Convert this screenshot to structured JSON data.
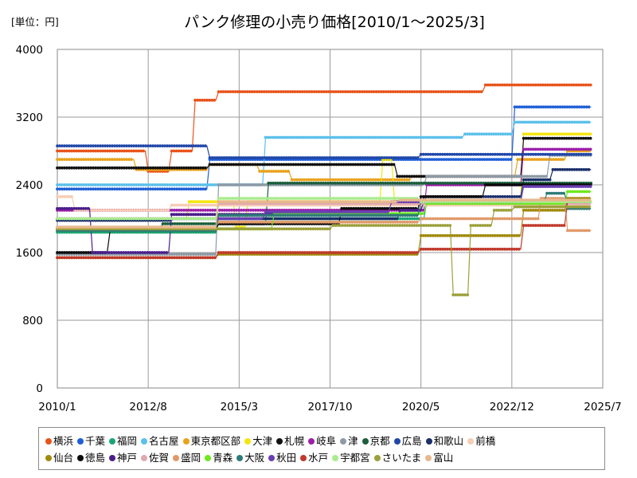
{
  "chart_data": {
    "type": "line",
    "title": "パンク修理の小売り価格[2010/1～2025/3]",
    "unit_label": "[単位：円]",
    "xlabel": "",
    "ylabel": "",
    "xlim": [
      "2010/1",
      "2025/7"
    ],
    "ylim": [
      0,
      4000
    ],
    "x_ticks": [
      "2010/1",
      "2012/8",
      "2015/3",
      "2017/10",
      "2020/5",
      "2022/12",
      "2025/7"
    ],
    "y_ticks": [
      0,
      800,
      1600,
      2400,
      3200,
      4000
    ],
    "grid": true,
    "legend_position": "bottom",
    "series": [
      {
        "name": "横浜",
        "color": "#e8531b",
        "points": [
          [
            "2010/1",
            2800
          ],
          [
            "2012/7",
            2800
          ],
          [
            "2012/8",
            2560
          ],
          [
            "2013/3",
            2560
          ],
          [
            "2013/4",
            2800
          ],
          [
            "2013/11",
            2800
          ],
          [
            "2013/12",
            3400
          ],
          [
            "2014/7",
            3400
          ],
          [
            "2014/8",
            3500
          ],
          [
            "2022/2",
            3500
          ],
          [
            "2022/3",
            3580
          ],
          [
            "2025/3",
            3580
          ]
        ]
      },
      {
        "name": "千葉",
        "color": "#1f5fd6",
        "points": [
          [
            "2010/1",
            2350
          ],
          [
            "2014/4",
            2350
          ],
          [
            "2014/5",
            2700
          ],
          [
            "2022/12",
            2700
          ],
          [
            "2023/1",
            3320
          ],
          [
            "2025/3",
            3320
          ]
        ]
      },
      {
        "name": "福岡",
        "color": "#17a673",
        "points": [
          [
            "2010/1",
            1840
          ],
          [
            "2014/7",
            1840
          ],
          [
            "2014/8",
            2000
          ],
          [
            "2020/6",
            2000
          ],
          [
            "2020/7",
            2200
          ],
          [
            "2025/3",
            2200
          ]
        ]
      },
      {
        "name": "名古屋",
        "color": "#5bc0eb",
        "points": [
          [
            "2010/1",
            2400
          ],
          [
            "2015/11",
            2400
          ],
          [
            "2015/12",
            2960
          ],
          [
            "2021/7",
            2960
          ],
          [
            "2021/8",
            3000
          ],
          [
            "2022/12",
            3000
          ],
          [
            "2023/1",
            3140
          ],
          [
            "2025/3",
            3140
          ]
        ]
      },
      {
        "name": "東京都区部",
        "color": "#e8a21c",
        "points": [
          [
            "2010/1",
            2700
          ],
          [
            "2012/3",
            2700
          ],
          [
            "2012/4",
            2580
          ],
          [
            "2014/4",
            2580
          ],
          [
            "2014/5",
            2640
          ],
          [
            "2015/9",
            2640
          ],
          [
            "2015/10",
            2560
          ],
          [
            "2016/8",
            2560
          ],
          [
            "2016/9",
            2460
          ],
          [
            "2020/1",
            2460
          ],
          [
            "2020/2",
            2500
          ],
          [
            "2023/1",
            2500
          ],
          [
            "2023/2",
            2700
          ],
          [
            "2024/6",
            2700
          ],
          [
            "2024/7",
            2800
          ],
          [
            "2025/3",
            2800
          ]
        ]
      },
      {
        "name": "大津",
        "color": "#f5e50f",
        "points": [
          [
            "2010/1",
            2000
          ],
          [
            "2013/9",
            2000
          ],
          [
            "2013/10",
            2200
          ],
          [
            "2015/1",
            2200
          ],
          [
            "2015/2",
            1900
          ],
          [
            "2015/5",
            1900
          ],
          [
            "2015/6",
            2200
          ],
          [
            "2019/3",
            2200
          ],
          [
            "2019/4",
            2700
          ],
          [
            "2019/7",
            2700
          ],
          [
            "2019/8",
            2200
          ],
          [
            "2023/3",
            2200
          ],
          [
            "2023/4",
            3000
          ],
          [
            "2025/3",
            3000
          ]
        ]
      },
      {
        "name": "札幌",
        "color": "#111111",
        "points": [
          [
            "2010/1",
            2600
          ],
          [
            "2014/4",
            2600
          ],
          [
            "2014/5",
            2640
          ],
          [
            "2019/8",
            2640
          ],
          [
            "2019/9",
            2500
          ],
          [
            "2023/3",
            2500
          ],
          [
            "2023/4",
            2950
          ],
          [
            "2025/3",
            2950
          ]
        ]
      },
      {
        "name": "岐阜",
        "color": "#9b1fa8",
        "points": [
          [
            "2010/1",
            2100
          ],
          [
            "2020/6",
            2100
          ],
          [
            "2020/7",
            2400
          ],
          [
            "2023/3",
            2400
          ],
          [
            "2023/4",
            2820
          ],
          [
            "2025/3",
            2820
          ]
        ]
      },
      {
        "name": "津",
        "color": "#8e9aa6",
        "points": [
          [
            "2010/1",
            1580
          ],
          [
            "2014/7",
            1580
          ],
          [
            "2014/8",
            2400
          ],
          [
            "2020/6",
            2400
          ],
          [
            "2020/7",
            2500
          ],
          [
            "2023/12",
            2500
          ],
          [
            "2024/1",
            2750
          ],
          [
            "2025/3",
            2750
          ]
        ]
      },
      {
        "name": "京都",
        "color": "#1b5e3b",
        "points": [
          [
            "2010/1",
            1880
          ],
          [
            "2012/12",
            1880
          ],
          [
            "2013/1",
            1940
          ],
          [
            "2015/12",
            1940
          ],
          [
            "2016/1",
            2420
          ],
          [
            "2025/3",
            2420
          ]
        ]
      },
      {
        "name": "広島",
        "color": "#2147a8",
        "points": [
          [
            "2010/1",
            2860
          ],
          [
            "2014/4",
            2860
          ],
          [
            "2014/5",
            2720
          ],
          [
            "2020/4",
            2720
          ],
          [
            "2020/5",
            2760
          ],
          [
            "2025/3",
            2760
          ]
        ]
      },
      {
        "name": "和歌山",
        "color": "#1a2f6b",
        "points": [
          [
            "2010/1",
            1980
          ],
          [
            "2013/4",
            1980
          ],
          [
            "2013/5",
            2000
          ],
          [
            "2019/9",
            2000
          ],
          [
            "2019/10",
            2100
          ],
          [
            "2020/5",
            2100
          ],
          [
            "2020/6",
            2260
          ],
          [
            "2023/3",
            2260
          ],
          [
            "2023/4",
            2460
          ],
          [
            "2024/1",
            2460
          ],
          [
            "2024/2",
            2580
          ],
          [
            "2025/3",
            2580
          ]
        ]
      },
      {
        "name": "前橋",
        "color": "#f7cdb5",
        "points": [
          [
            "2010/1",
            2260
          ],
          [
            "2010/6",
            2260
          ],
          [
            "2010/7",
            2100
          ],
          [
            "2013/3",
            2100
          ],
          [
            "2013/4",
            2160
          ],
          [
            "2025/3",
            2160
          ]
        ]
      },
      {
        "name": "仙台",
        "color": "#a08a0c",
        "points": [
          [
            "2010/1",
            1540
          ],
          [
            "2014/7",
            1540
          ],
          [
            "2014/8",
            1580
          ],
          [
            "2020/4",
            1580
          ],
          [
            "2020/5",
            1800
          ],
          [
            "2023/3",
            1800
          ],
          [
            "2023/4",
            2100
          ],
          [
            "2024/6",
            2100
          ],
          [
            "2024/7",
            2240
          ],
          [
            "2025/3",
            2240
          ]
        ]
      },
      {
        "name": "徳島",
        "color": "#0b0b0b",
        "points": [
          [
            "2010/1",
            1600
          ],
          [
            "2011/6",
            1600
          ],
          [
            "2011/7",
            1860
          ],
          [
            "2014/7",
            1860
          ],
          [
            "2014/8",
            1940
          ],
          [
            "2018/1",
            1940
          ],
          [
            "2018/2",
            2120
          ],
          [
            "2020/4",
            2120
          ],
          [
            "2020/5",
            2260
          ],
          [
            "2022/2",
            2260
          ],
          [
            "2022/3",
            2400
          ],
          [
            "2025/3",
            2400
          ]
        ]
      },
      {
        "name": "神戸",
        "color": "#4b1e8c",
        "points": [
          [
            "2010/1",
            2120
          ],
          [
            "2010/12",
            2120
          ],
          [
            "2011/1",
            1600
          ],
          [
            "2013/3",
            1600
          ],
          [
            "2013/4",
            2050
          ],
          [
            "2019/9",
            2050
          ],
          [
            "2019/10",
            2100
          ],
          [
            "2020/5",
            2100
          ],
          [
            "2020/6",
            2200
          ],
          [
            "2025/3",
            2200
          ]
        ]
      },
      {
        "name": "佐賀",
        "color": "#e0a8b0",
        "points": [
          [
            "2010/1",
            1880
          ],
          [
            "2014/7",
            1880
          ],
          [
            "2014/8",
            2180
          ],
          [
            "2025/3",
            2180
          ]
        ]
      },
      {
        "name": "盛岡",
        "color": "#e09a6a",
        "points": [
          [
            "2010/1",
            1900
          ],
          [
            "2014/7",
            1900
          ],
          [
            "2014/8",
            1960
          ],
          [
            "2020/4",
            1960
          ],
          [
            "2020/5",
            2000
          ],
          [
            "2023/9",
            2000
          ],
          [
            "2023/10",
            2240
          ],
          [
            "2024/6",
            2240
          ],
          [
            "2024/7",
            1860
          ],
          [
            "2025/3",
            1860
          ]
        ]
      },
      {
        "name": "青森",
        "color": "#6de820",
        "points": [
          [
            "2010/1",
            1860
          ],
          [
            "2014/7",
            1860
          ],
          [
            "2014/8",
            1880
          ],
          [
            "2016/2",
            1880
          ],
          [
            "2016/3",
            2060
          ],
          [
            "2020/6",
            2060
          ],
          [
            "2020/7",
            2180
          ],
          [
            "2024/6",
            2180
          ],
          [
            "2024/7",
            2320
          ],
          [
            "2025/3",
            2320
          ]
        ]
      },
      {
        "name": "大阪",
        "color": "#2f7a78",
        "points": [
          [
            "2010/1",
            1860
          ],
          [
            "2014/7",
            1860
          ],
          [
            "2014/8",
            2040
          ],
          [
            "2020/4",
            2040
          ],
          [
            "2020/5",
            2200
          ],
          [
            "2023/11",
            2200
          ],
          [
            "2023/12",
            2300
          ],
          [
            "2024/6",
            2300
          ],
          [
            "2024/7",
            2120
          ],
          [
            "2025/3",
            2120
          ]
        ]
      },
      {
        "name": "秋田",
        "color": "#6a3fb5",
        "points": [
          [
            "2010/1",
            2000
          ],
          [
            "2015/11",
            2000
          ],
          [
            "2015/12",
            2080
          ],
          [
            "2019/6",
            2080
          ],
          [
            "2019/7",
            2200
          ],
          [
            "2023/3",
            2200
          ],
          [
            "2023/4",
            2380
          ],
          [
            "2025/3",
            2380
          ]
        ]
      },
      {
        "name": "水戸",
        "color": "#c0392b",
        "points": [
          [
            "2010/1",
            1540
          ],
          [
            "2014/7",
            1540
          ],
          [
            "2014/8",
            1600
          ],
          [
            "2020/4",
            1600
          ],
          [
            "2020/5",
            1640
          ],
          [
            "2023/3",
            1640
          ],
          [
            "2023/4",
            1920
          ],
          [
            "2024/6",
            1920
          ],
          [
            "2024/7",
            2200
          ],
          [
            "2025/3",
            2200
          ]
        ]
      },
      {
        "name": "宇都宮",
        "color": "#a9ec8e",
        "points": [
          [
            "2010/1",
            2000
          ],
          [
            "2014/7",
            2000
          ],
          [
            "2014/8",
            2240
          ],
          [
            "2020/4",
            2240
          ],
          [
            "2020/5",
            2200
          ],
          [
            "2025/3",
            2200
          ]
        ]
      },
      {
        "name": "さいたま",
        "color": "#9da03c",
        "points": [
          [
            "2010/1",
            1880
          ],
          [
            "2017/10",
            1880
          ],
          [
            "2017/11",
            1920
          ],
          [
            "2021/3",
            1920
          ],
          [
            "2021/4",
            1100
          ],
          [
            "2021/9",
            1100
          ],
          [
            "2021/10",
            1920
          ],
          [
            "2022/5",
            1920
          ],
          [
            "2022/6",
            2100
          ],
          [
            "2022/12",
            2100
          ],
          [
            "2023/1",
            2140
          ],
          [
            "2025/3",
            2140
          ]
        ]
      },
      {
        "name": "富山",
        "color": "#e8b88c",
        "points": [
          [
            "2010/1",
            1900
          ],
          [
            "2014/7",
            1900
          ],
          [
            "2014/8",
            2200
          ],
          [
            "2019/9",
            2200
          ],
          [
            "2019/10",
            2220
          ],
          [
            "2025/3",
            2220
          ]
        ]
      }
    ]
  }
}
